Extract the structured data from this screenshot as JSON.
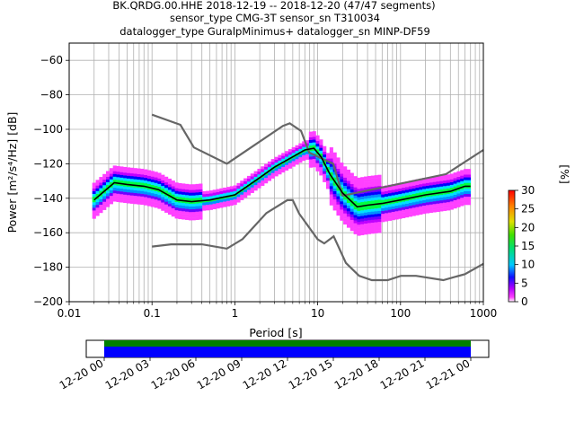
{
  "chart_data": [
    {
      "type": "heatmap",
      "title_lines": [
        "BK.QRDG.00.HHE   2018-12-19 -- 2018-12-20  (47/47 segments)",
        "sensor_type CMG-3T sensor_sn T310034",
        "datalogger_type GuralpMinimus+ datalogger_sn MINP-DF59"
      ],
      "xlabel": "Period [s]",
      "ylabel": "Power [m²/s⁴/Hz] [dB]",
      "xscale": "log",
      "xlim": [
        0.01,
        1000
      ],
      "ylim": [
        -200,
        -50
      ],
      "x_ticks": [
        0.01,
        0.1,
        1,
        10,
        100,
        1000
      ],
      "x_tick_labels": [
        "0.01",
        "0.1",
        "1",
        "10",
        "100",
        "1000"
      ],
      "y_ticks": [
        -200,
        -180,
        -160,
        -140,
        -120,
        -100,
        -80,
        -60
      ],
      "y_tick_labels": [
        "−200",
        "−180",
        "−160",
        "−140",
        "−120",
        "−100",
        "−80",
        "−60"
      ],
      "grid": true,
      "colorbar": {
        "label": "[%]",
        "range": [
          0,
          30
        ],
        "ticks": [
          0,
          5,
          10,
          15,
          20,
          25,
          30
        ],
        "tick_labels": [
          "0",
          "5",
          "10",
          "15",
          "20",
          "25",
          "30"
        ]
      },
      "mean_curve": {
        "color": "#000000",
        "period": [
          0.02,
          0.025,
          0.035,
          0.05,
          0.08,
          0.12,
          0.2,
          0.3,
          0.5,
          1,
          2,
          3,
          5,
          7,
          9,
          11,
          14,
          20,
          30,
          40,
          60,
          100,
          200,
          400,
          600,
          700
        ],
        "power": [
          -141,
          -137,
          -131,
          -132,
          -133,
          -135,
          -141,
          -142,
          -141,
          -138,
          -128,
          -122,
          -116,
          -112,
          -111,
          -116,
          -126,
          -137,
          -145,
          -144,
          -143,
          -141,
          -138,
          -136,
          -133,
          -133
        ]
      },
      "noise_models": [
        {
          "name": "high",
          "color": "#666666",
          "period": [
            0.1,
            0.22,
            0.32,
            0.8,
            3.8,
            4.6,
            6.3,
            7.9,
            15.4,
            20,
            354.8,
            1000
          ],
          "power": [
            -91.5,
            -97.4,
            -110.5,
            -120,
            -98,
            -96.5,
            -101,
            -113.5,
            -120,
            -138.5,
            -126,
            -112
          ]
        },
        {
          "name": "low",
          "color": "#666666",
          "period": [
            0.1,
            0.17,
            0.4,
            0.8,
            1.24,
            2.4,
            4.3,
            5,
            6,
            10,
            12,
            15.6,
            21.9,
            31.6,
            45,
            70,
            101,
            154,
            328,
            600,
            1000
          ],
          "power": [
            -168,
            -166.7,
            -166.7,
            -169.2,
            -163.7,
            -148.6,
            -141.1,
            -141.1,
            -149,
            -163.8,
            -166.2,
            -162.1,
            -177.5,
            -185,
            -187.5,
            -187.5,
            -185,
            -185,
            -187.5,
            -184,
            -178
          ]
        }
      ],
      "time_axis": {
        "tick_labels": [
          "12-20 00",
          "12-20 03",
          "12-20 06",
          "12-20 09",
          "12-20 12",
          "12-20 15",
          "12-20 18",
          "12-20 21",
          "12-21 00"
        ],
        "coverage_colors": [
          "#008000",
          "#0000ff"
        ]
      }
    }
  ]
}
